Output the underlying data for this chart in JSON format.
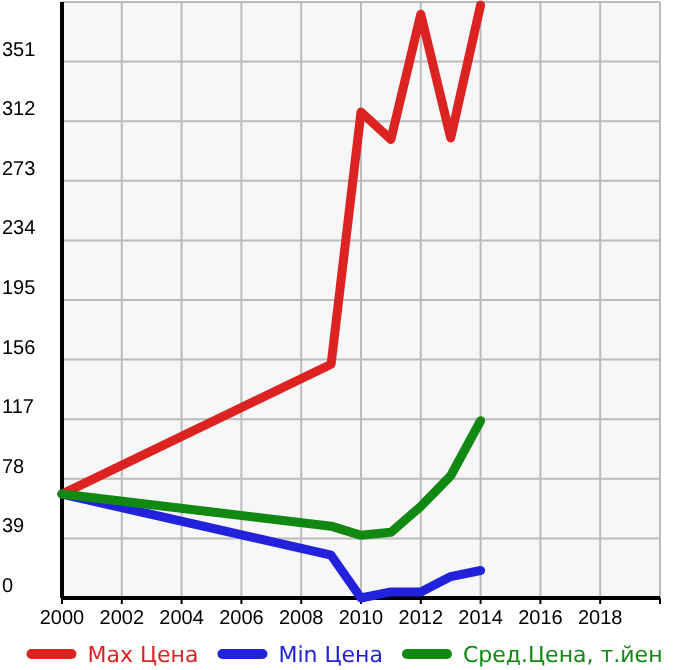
{
  "chart_data": {
    "type": "line",
    "x": [
      2000,
      2009,
      2010,
      2011,
      2012,
      2013,
      2014
    ],
    "series": [
      {
        "name": "Max Цена",
        "color": "#dd2222",
        "values": [
          68,
          153,
          318,
          300,
          382,
          301,
          388
        ]
      },
      {
        "name": "Min Цена",
        "color": "#2222dd",
        "values": [
          68,
          28,
          0,
          4,
          4,
          14,
          18
        ]
      },
      {
        "name": "Сред.Цена, т.йен",
        "color": "#118811",
        "values": [
          68,
          47,
          41,
          43,
          60,
          80,
          116
        ]
      }
    ],
    "xlim": [
      2000,
      2020
    ],
    "xticks": [
      2000,
      2002,
      2004,
      2006,
      2008,
      2010,
      2012,
      2014,
      2016,
      2018,
      {
        "value": 2020,
        "label": null
      }
    ],
    "ylim": [
      0,
      390
    ],
    "yticks": [
      0,
      39,
      78,
      117,
      156,
      195,
      234,
      273,
      312,
      351,
      {
        "value": 390,
        "label": null
      }
    ],
    "grid": true,
    "legend": "bottom",
    "marker": "none",
    "line_style": "solid"
  }
}
